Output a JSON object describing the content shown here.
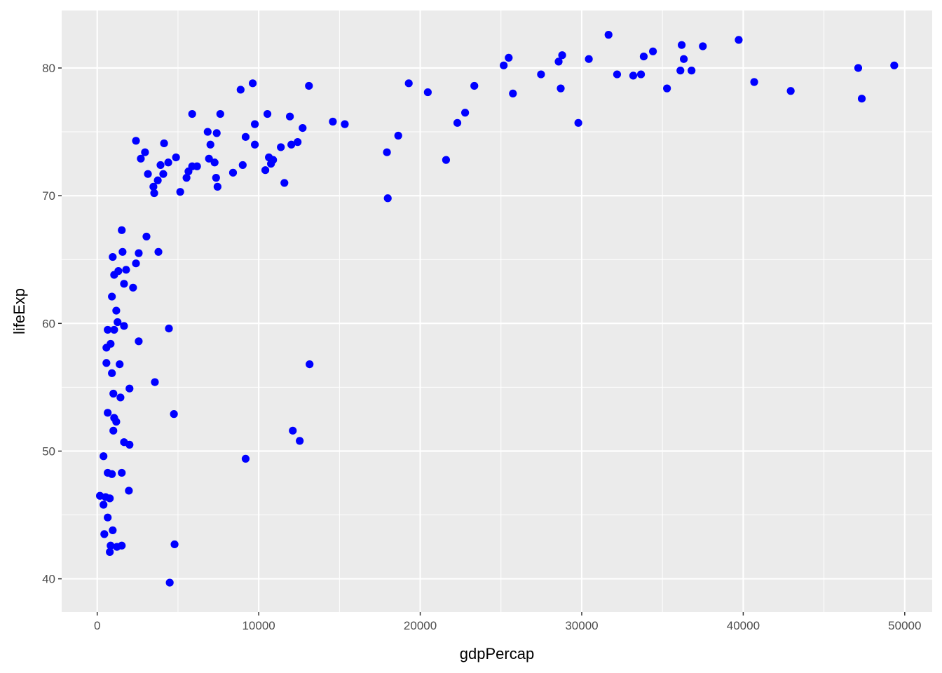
{
  "chart_data": {
    "type": "scatter",
    "title": "",
    "xlabel": "gdpPercap",
    "ylabel": "lifeExp",
    "xlim": [
      -2200,
      51700
    ],
    "ylim": [
      37.4,
      84.5
    ],
    "x_ticks": [
      0,
      10000,
      20000,
      30000,
      40000,
      50000
    ],
    "y_ticks": [
      40,
      50,
      60,
      70,
      80
    ],
    "x_tick_labels": [
      "0",
      "10000",
      "20000",
      "30000",
      "40000",
      "50000"
    ],
    "y_tick_labels": [
      "40",
      "50",
      "60",
      "70",
      "80"
    ],
    "grid": true,
    "panel_background": "#EBEBEB",
    "grid_color": "#FFFFFF",
    "point_color": "#0000FF",
    "points": [
      [
        31660,
        82.6
      ],
      [
        39720,
        82.2
      ],
      [
        36190,
        81.8
      ],
      [
        37500,
        81.7
      ],
      [
        34410,
        81.3
      ],
      [
        33840,
        80.9
      ],
      [
        28790,
        81.0
      ],
      [
        25480,
        80.8
      ],
      [
        30440,
        80.7
      ],
      [
        36320,
        80.7
      ],
      [
        28570,
        80.5
      ],
      [
        25170,
        80.2
      ],
      [
        49350,
        80.2
      ],
      [
        47120,
        80.0
      ],
      [
        36110,
        79.8
      ],
      [
        36800,
        79.8
      ],
      [
        27480,
        79.5
      ],
      [
        32190,
        79.5
      ],
      [
        33190,
        79.4
      ],
      [
        33670,
        79.5
      ],
      [
        40680,
        78.9
      ],
      [
        19290,
        78.8
      ],
      [
        9630,
        78.8
      ],
      [
        8880,
        78.3
      ],
      [
        13110,
        78.6
      ],
      [
        23350,
        78.6
      ],
      [
        28700,
        78.4
      ],
      [
        35280,
        78.4
      ],
      [
        42940,
        78.2
      ],
      [
        20470,
        78.1
      ],
      [
        25740,
        78.0
      ],
      [
        47340,
        77.6
      ],
      [
        5880,
        76.4
      ],
      [
        7620,
        76.4
      ],
      [
        10540,
        76.4
      ],
      [
        22780,
        76.5
      ],
      [
        11930,
        76.2
      ],
      [
        14590,
        75.8
      ],
      [
        15330,
        75.6
      ],
      [
        22300,
        75.7
      ],
      [
        29790,
        75.7
      ],
      [
        9760,
        75.6
      ],
      [
        12720,
        75.3
      ],
      [
        6840,
        75.0
      ],
      [
        7400,
        74.9
      ],
      [
        18640,
        74.7
      ],
      [
        9190,
        74.6
      ],
      [
        2400,
        74.3
      ],
      [
        4140,
        74.1
      ],
      [
        12410,
        74.2
      ],
      [
        7010,
        74.0
      ],
      [
        9760,
        74.0
      ],
      [
        12020,
        74.0
      ],
      [
        11370,
        73.8
      ],
      [
        2960,
        73.4
      ],
      [
        17940,
        73.4
      ],
      [
        4880,
        73.0
      ],
      [
        2700,
        72.9
      ],
      [
        6920,
        72.9
      ],
      [
        10630,
        73.0
      ],
      [
        10890,
        72.8
      ],
      [
        21600,
        72.8
      ],
      [
        4400,
        72.6
      ],
      [
        7270,
        72.6
      ],
      [
        3920,
        72.4
      ],
      [
        9010,
        72.4
      ],
      [
        10760,
        72.5
      ],
      [
        5880,
        72.3
      ],
      [
        6180,
        72.3
      ],
      [
        5650,
        71.9
      ],
      [
        3140,
        71.7
      ],
      [
        4090,
        71.7
      ],
      [
        8410,
        71.8
      ],
      [
        10410,
        72.0
      ],
      [
        5530,
        71.4
      ],
      [
        3750,
        71.2
      ],
      [
        7360,
        71.4
      ],
      [
        11590,
        71.0
      ],
      [
        3480,
        70.7
      ],
      [
        7450,
        70.7
      ],
      [
        3530,
        70.2
      ],
      [
        5140,
        70.3
      ],
      [
        17990,
        69.8
      ],
      [
        1520,
        67.3
      ],
      [
        3050,
        66.8
      ],
      [
        960,
        65.2
      ],
      [
        1570,
        65.6
      ],
      [
        2570,
        65.5
      ],
      [
        3790,
        65.6
      ],
      [
        2400,
        64.7
      ],
      [
        1310,
        64.1
      ],
      [
        1790,
        64.2
      ],
      [
        1050,
        63.8
      ],
      [
        1660,
        63.1
      ],
      [
        2220,
        62.8
      ],
      [
        910,
        62.1
      ],
      [
        1180,
        61.0
      ],
      [
        1260,
        60.1
      ],
      [
        650,
        59.5
      ],
      [
        1050,
        59.5
      ],
      [
        1660,
        59.8
      ],
      [
        4440,
        59.6
      ],
      [
        2570,
        58.6
      ],
      [
        830,
        58.4
      ],
      [
        570,
        58.1
      ],
      [
        570,
        56.9
      ],
      [
        1390,
        56.8
      ],
      [
        13150,
        56.8
      ],
      [
        910,
        56.1
      ],
      [
        3570,
        55.4
      ],
      [
        2000,
        54.9
      ],
      [
        1000,
        54.5
      ],
      [
        1440,
        54.2
      ],
      [
        650,
        53.0
      ],
      [
        4750,
        52.9
      ],
      [
        1050,
        52.6
      ],
      [
        1180,
        52.3
      ],
      [
        12110,
        51.6
      ],
      [
        1000,
        51.6
      ],
      [
        12540,
        50.8
      ],
      [
        1660,
        50.7
      ],
      [
        2000,
        50.5
      ],
      [
        390,
        49.6
      ],
      [
        9190,
        49.4
      ],
      [
        650,
        48.3
      ],
      [
        910,
        48.2
      ],
      [
        1520,
        48.3
      ],
      [
        1960,
        46.9
      ],
      [
        170,
        46.5
      ],
      [
        520,
        46.4
      ],
      [
        780,
        46.3
      ],
      [
        390,
        45.8
      ],
      [
        650,
        44.8
      ],
      [
        960,
        43.8
      ],
      [
        440,
        43.5
      ],
      [
        4790,
        42.7
      ],
      [
        830,
        42.6
      ],
      [
        1520,
        42.6
      ],
      [
        1220,
        42.5
      ],
      [
        780,
        42.1
      ],
      [
        4490,
        39.7
      ]
    ]
  }
}
